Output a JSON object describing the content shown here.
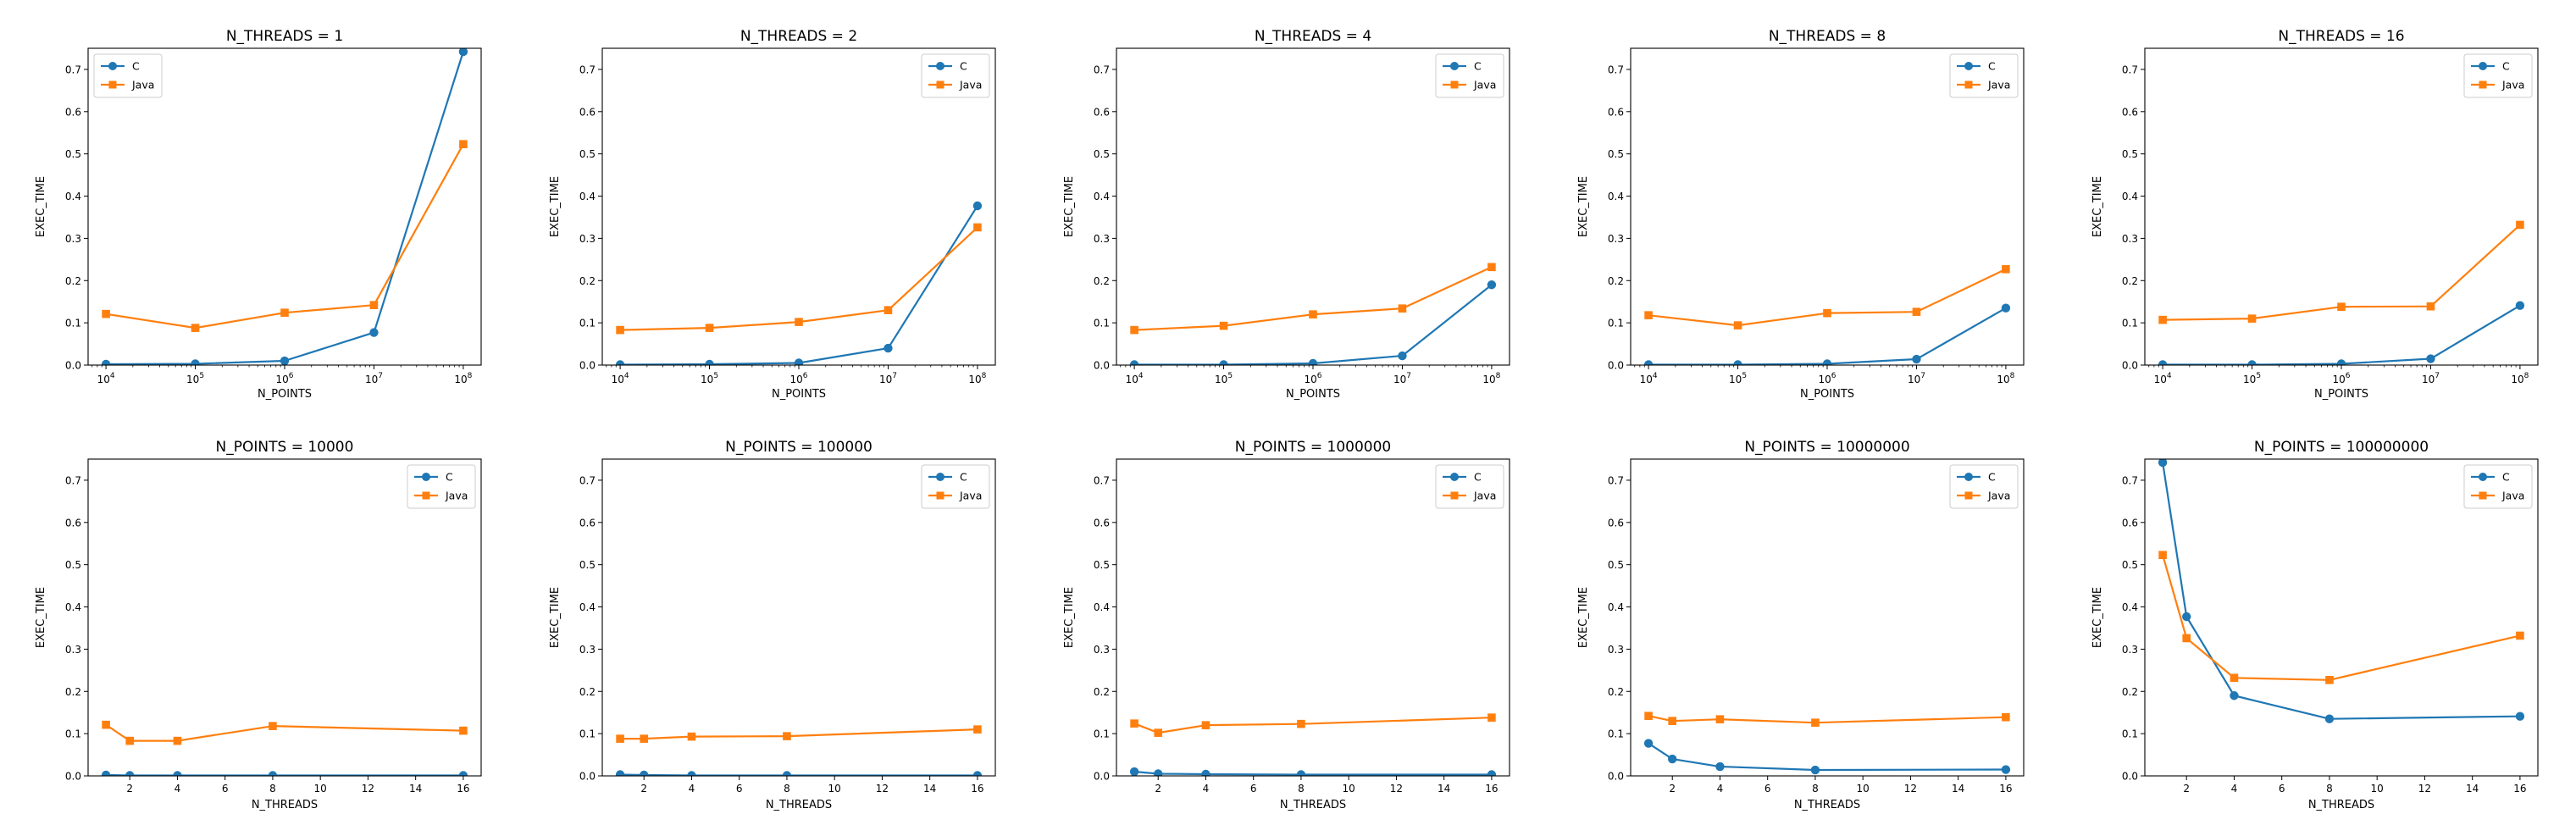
{
  "chart_data": [
    {
      "type": "line",
      "title": "N_THREADS = 1",
      "xlabel": "N_POINTS",
      "ylabel": "EXEC_TIME",
      "xscale": "log",
      "x": [
        10000,
        100000,
        1000000,
        10000000,
        100000000
      ],
      "xticks": [
        {
          "base": "10",
          "exp": "4"
        },
        {
          "base": "10",
          "exp": "5"
        },
        {
          "base": "10",
          "exp": "6"
        },
        {
          "base": "10",
          "exp": "7"
        },
        {
          "base": "10",
          "exp": "8"
        }
      ],
      "ylim": [
        0,
        0.75
      ],
      "yticks": [
        "0.0",
        "0.1",
        "0.2",
        "0.3",
        "0.4",
        "0.5",
        "0.6",
        "0.7"
      ],
      "legend": "top-left",
      "series": [
        {
          "name": "C",
          "marker": "circle",
          "color": "#1f77b4",
          "values": [
            0.002,
            0.003,
            0.01,
            0.077,
            0.742
          ]
        },
        {
          "name": "Java",
          "marker": "square",
          "color": "#ff7f0e",
          "values": [
            0.121,
            0.088,
            0.124,
            0.142,
            0.523
          ]
        }
      ]
    },
    {
      "type": "line",
      "title": "N_THREADS = 2",
      "xlabel": "N_POINTS",
      "ylabel": "EXEC_TIME",
      "xscale": "log",
      "x": [
        10000,
        100000,
        1000000,
        10000000,
        100000000
      ],
      "xticks": [
        {
          "base": "10",
          "exp": "4"
        },
        {
          "base": "10",
          "exp": "5"
        },
        {
          "base": "10",
          "exp": "6"
        },
        {
          "base": "10",
          "exp": "7"
        },
        {
          "base": "10",
          "exp": "8"
        }
      ],
      "ylim": [
        0,
        0.75
      ],
      "yticks": [
        "0.0",
        "0.1",
        "0.2",
        "0.3",
        "0.4",
        "0.5",
        "0.6",
        "0.7"
      ],
      "legend": "top-right",
      "series": [
        {
          "name": "C",
          "marker": "circle",
          "color": "#1f77b4",
          "values": [
            0.001,
            0.002,
            0.005,
            0.04,
            0.377
          ]
        },
        {
          "name": "Java",
          "marker": "square",
          "color": "#ff7f0e",
          "values": [
            0.083,
            0.088,
            0.102,
            0.13,
            0.326
          ]
        }
      ]
    },
    {
      "type": "line",
      "title": "N_THREADS = 4",
      "xlabel": "N_POINTS",
      "ylabel": "EXEC_TIME",
      "xscale": "log",
      "x": [
        10000,
        100000,
        1000000,
        10000000,
        100000000
      ],
      "xticks": [
        {
          "base": "10",
          "exp": "4"
        },
        {
          "base": "10",
          "exp": "5"
        },
        {
          "base": "10",
          "exp": "6"
        },
        {
          "base": "10",
          "exp": "7"
        },
        {
          "base": "10",
          "exp": "8"
        }
      ],
      "ylim": [
        0,
        0.75
      ],
      "yticks": [
        "0.0",
        "0.1",
        "0.2",
        "0.3",
        "0.4",
        "0.5",
        "0.6",
        "0.7"
      ],
      "legend": "top-right",
      "series": [
        {
          "name": "C",
          "marker": "circle",
          "color": "#1f77b4",
          "values": [
            0.001,
            0.001,
            0.004,
            0.022,
            0.19
          ]
        },
        {
          "name": "Java",
          "marker": "square",
          "color": "#ff7f0e",
          "values": [
            0.083,
            0.093,
            0.12,
            0.134,
            0.232
          ]
        }
      ]
    },
    {
      "type": "line",
      "title": "N_THREADS = 8",
      "xlabel": "N_POINTS",
      "ylabel": "EXEC_TIME",
      "xscale": "log",
      "x": [
        10000,
        100000,
        1000000,
        10000000,
        100000000
      ],
      "xticks": [
        {
          "base": "10",
          "exp": "4"
        },
        {
          "base": "10",
          "exp": "5"
        },
        {
          "base": "10",
          "exp": "6"
        },
        {
          "base": "10",
          "exp": "7"
        },
        {
          "base": "10",
          "exp": "8"
        }
      ],
      "ylim": [
        0,
        0.75
      ],
      "yticks": [
        "0.0",
        "0.1",
        "0.2",
        "0.3",
        "0.4",
        "0.5",
        "0.6",
        "0.7"
      ],
      "legend": "top-right",
      "series": [
        {
          "name": "C",
          "marker": "circle",
          "color": "#1f77b4",
          "values": [
            0.001,
            0.001,
            0.003,
            0.014,
            0.135
          ]
        },
        {
          "name": "Java",
          "marker": "square",
          "color": "#ff7f0e",
          "values": [
            0.118,
            0.094,
            0.123,
            0.126,
            0.227
          ]
        }
      ]
    },
    {
      "type": "line",
      "title": "N_THREADS = 16",
      "xlabel": "N_POINTS",
      "ylabel": "EXEC_TIME",
      "xscale": "log",
      "x": [
        10000,
        100000,
        1000000,
        10000000,
        100000000
      ],
      "xticks": [
        {
          "base": "10",
          "exp": "4"
        },
        {
          "base": "10",
          "exp": "5"
        },
        {
          "base": "10",
          "exp": "6"
        },
        {
          "base": "10",
          "exp": "7"
        },
        {
          "base": "10",
          "exp": "8"
        }
      ],
      "ylim": [
        0,
        0.75
      ],
      "yticks": [
        "0.0",
        "0.1",
        "0.2",
        "0.3",
        "0.4",
        "0.5",
        "0.6",
        "0.7"
      ],
      "legend": "top-right",
      "series": [
        {
          "name": "C",
          "marker": "circle",
          "color": "#1f77b4",
          "values": [
            0.001,
            0.001,
            0.003,
            0.015,
            0.141
          ]
        },
        {
          "name": "Java",
          "marker": "square",
          "color": "#ff7f0e",
          "values": [
            0.107,
            0.11,
            0.138,
            0.139,
            0.332
          ]
        }
      ]
    },
    {
      "type": "line",
      "title": "N_POINTS = 10000",
      "xlabel": "N_THREADS",
      "ylabel": "EXEC_TIME",
      "xscale": "linear",
      "x": [
        1,
        2,
        4,
        8,
        16
      ],
      "xlim": [
        0.25,
        16.75
      ],
      "xticks": [
        "2",
        "4",
        "6",
        "8",
        "10",
        "12",
        "14",
        "16"
      ],
      "ylim": [
        0,
        0.75
      ],
      "yticks": [
        "0.0",
        "0.1",
        "0.2",
        "0.3",
        "0.4",
        "0.5",
        "0.6",
        "0.7"
      ],
      "legend": "top-right",
      "series": [
        {
          "name": "C",
          "marker": "circle",
          "color": "#1f77b4",
          "values": [
            0.002,
            0.001,
            0.001,
            0.001,
            0.001
          ]
        },
        {
          "name": "Java",
          "marker": "square",
          "color": "#ff7f0e",
          "values": [
            0.121,
            0.083,
            0.083,
            0.118,
            0.107
          ]
        }
      ]
    },
    {
      "type": "line",
      "title": "N_POINTS = 100000",
      "xlabel": "N_THREADS",
      "ylabel": "EXEC_TIME",
      "xscale": "linear",
      "x": [
        1,
        2,
        4,
        8,
        16
      ],
      "xlim": [
        0.25,
        16.75
      ],
      "xticks": [
        "2",
        "4",
        "6",
        "8",
        "10",
        "12",
        "14",
        "16"
      ],
      "ylim": [
        0,
        0.75
      ],
      "yticks": [
        "0.0",
        "0.1",
        "0.2",
        "0.3",
        "0.4",
        "0.5",
        "0.6",
        "0.7"
      ],
      "legend": "top-right",
      "series": [
        {
          "name": "C",
          "marker": "circle",
          "color": "#1f77b4",
          "values": [
            0.003,
            0.002,
            0.001,
            0.001,
            0.001
          ]
        },
        {
          "name": "Java",
          "marker": "square",
          "color": "#ff7f0e",
          "values": [
            0.088,
            0.088,
            0.093,
            0.094,
            0.11
          ]
        }
      ]
    },
    {
      "type": "line",
      "title": "N_POINTS = 1000000",
      "xlabel": "N_THREADS",
      "ylabel": "EXEC_TIME",
      "xscale": "linear",
      "x": [
        1,
        2,
        4,
        8,
        16
      ],
      "xlim": [
        0.25,
        16.75
      ],
      "xticks": [
        "2",
        "4",
        "6",
        "8",
        "10",
        "12",
        "14",
        "16"
      ],
      "ylim": [
        0,
        0.75
      ],
      "yticks": [
        "0.0",
        "0.1",
        "0.2",
        "0.3",
        "0.4",
        "0.5",
        "0.6",
        "0.7"
      ],
      "legend": "top-right",
      "series": [
        {
          "name": "C",
          "marker": "circle",
          "color": "#1f77b4",
          "values": [
            0.01,
            0.005,
            0.004,
            0.003,
            0.003
          ]
        },
        {
          "name": "Java",
          "marker": "square",
          "color": "#ff7f0e",
          "values": [
            0.124,
            0.102,
            0.12,
            0.123,
            0.138
          ]
        }
      ]
    },
    {
      "type": "line",
      "title": "N_POINTS = 10000000",
      "xlabel": "N_THREADS",
      "ylabel": "EXEC_TIME",
      "xscale": "linear",
      "x": [
        1,
        2,
        4,
        8,
        16
      ],
      "xlim": [
        0.25,
        16.75
      ],
      "xticks": [
        "2",
        "4",
        "6",
        "8",
        "10",
        "12",
        "14",
        "16"
      ],
      "ylim": [
        0,
        0.75
      ],
      "yticks": [
        "0.0",
        "0.1",
        "0.2",
        "0.3",
        "0.4",
        "0.5",
        "0.6",
        "0.7"
      ],
      "legend": "top-right",
      "series": [
        {
          "name": "C",
          "marker": "circle",
          "color": "#1f77b4",
          "values": [
            0.077,
            0.04,
            0.022,
            0.014,
            0.015
          ]
        },
        {
          "name": "Java",
          "marker": "square",
          "color": "#ff7f0e",
          "values": [
            0.142,
            0.13,
            0.134,
            0.126,
            0.139
          ]
        }
      ]
    },
    {
      "type": "line",
      "title": "N_POINTS = 100000000",
      "xlabel": "N_THREADS",
      "ylabel": "EXEC_TIME",
      "xscale": "linear",
      "x": [
        1,
        2,
        4,
        8,
        16
      ],
      "xlim": [
        0.25,
        16.75
      ],
      "xticks": [
        "2",
        "4",
        "6",
        "8",
        "10",
        "12",
        "14",
        "16"
      ],
      "ylim": [
        0,
        0.75
      ],
      "yticks": [
        "0.0",
        "0.1",
        "0.2",
        "0.3",
        "0.4",
        "0.5",
        "0.6",
        "0.7"
      ],
      "legend": "top-right",
      "series": [
        {
          "name": "C",
          "marker": "circle",
          "color": "#1f77b4",
          "values": [
            0.742,
            0.377,
            0.19,
            0.135,
            0.141
          ]
        },
        {
          "name": "Java",
          "marker": "square",
          "color": "#ff7f0e",
          "values": [
            0.523,
            0.326,
            0.232,
            0.227,
            0.332
          ]
        }
      ]
    }
  ]
}
